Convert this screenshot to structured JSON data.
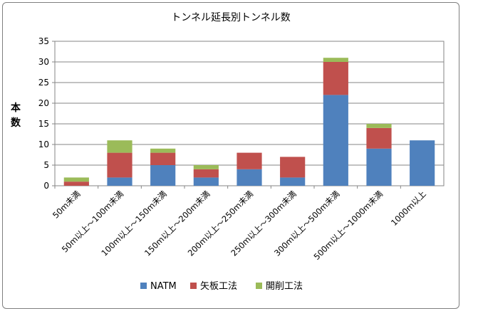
{
  "chart_data": {
    "type": "bar",
    "stacked": true,
    "title": "トンネル延長別トンネル数",
    "ylabel": "本数",
    "xlabel": "",
    "ylim": [
      0,
      35
    ],
    "yticks": [
      0,
      5,
      10,
      15,
      20,
      25,
      30,
      35
    ],
    "grid": true,
    "legend_position": "bottom",
    "categories": [
      "50m未満",
      "50m以上～100m未満",
      "100m以上～150m未満",
      "150m以上～200m未満",
      "200m以上～250m未満",
      "250m以上～300m未満",
      "300m以上～500m未満",
      "500m以上～1000m未満",
      "1000m以上"
    ],
    "series": [
      {
        "name": "NATM",
        "color": "#4f81bd",
        "values": [
          0,
          2,
          5,
          2,
          4,
          2,
          22,
          9,
          11
        ]
      },
      {
        "name": "矢板工法",
        "color": "#c0504d",
        "values": [
          1,
          6,
          3,
          2,
          4,
          5,
          8,
          5,
          0
        ]
      },
      {
        "name": "開削工法",
        "color": "#9bbb59",
        "values": [
          1,
          3,
          1,
          1,
          0,
          0,
          1,
          1,
          0
        ]
      }
    ]
  }
}
